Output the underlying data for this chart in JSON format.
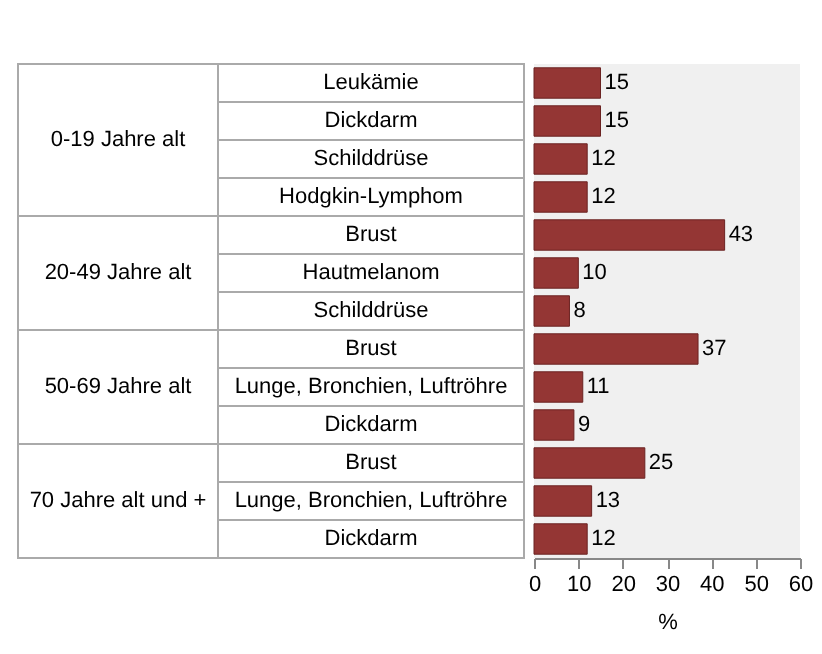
{
  "chart_data": {
    "type": "bar",
    "orientation": "horizontal",
    "categories": [
      "Leukämie",
      "Dickdarm",
      "Schilddrüse",
      "Hodgkin-Lymphom",
      "Brust",
      "Hautmelanom",
      "Schilddrüse",
      "Brust",
      "Lunge, Bronchien, Luftröhre",
      "Dickdarm",
      "Brust",
      "Lunge, Bronchien, Luftröhre",
      "Dickdarm"
    ],
    "values": [
      15,
      15,
      12,
      12,
      43,
      10,
      8,
      37,
      11,
      9,
      25,
      13,
      12
    ],
    "color": "#943634",
    "xlabel": "%",
    "xlim": [
      0,
      60
    ],
    "xticks": [
      0,
      10,
      20,
      30,
      40,
      50,
      60
    ],
    "data_labels": true,
    "annotations": [
      "0-19 Jahre alt",
      "20-49 Jahre alt",
      "50-69 Jahre alt",
      "70 Jahre alt und +"
    ]
  }
}
